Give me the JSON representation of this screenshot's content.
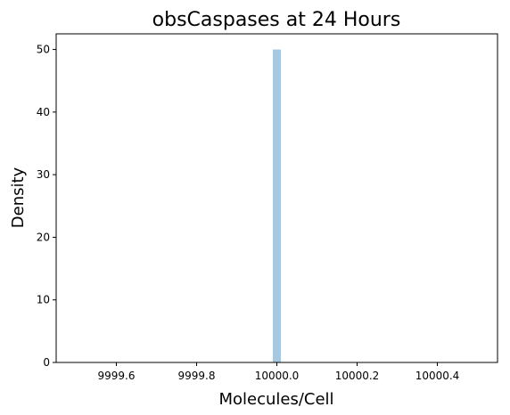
{
  "chart_data": {
    "type": "bar",
    "title": "obsCaspases at 24 Hours",
    "xlabel": "Molecules/Cell",
    "ylabel": "Density",
    "xlim": [
      9999.45,
      10000.55
    ],
    "ylim": [
      0,
      52.5
    ],
    "xticks": [
      9999.6,
      9999.8,
      10000.0,
      10000.2,
      10000.4
    ],
    "xtick_labels": [
      "9999.6",
      "9999.8",
      "10000.0",
      "10000.2",
      "10000.4"
    ],
    "yticks": [
      0,
      10,
      20,
      30,
      40,
      50
    ],
    "ytick_labels": [
      "0",
      "10",
      "20",
      "30",
      "40",
      "50"
    ],
    "bins": [
      {
        "x0": 9999.99,
        "x1": 10000.01,
        "value": 50
      }
    ],
    "bar_color": "#a6c8e0",
    "grid": false,
    "legend": "none"
  }
}
